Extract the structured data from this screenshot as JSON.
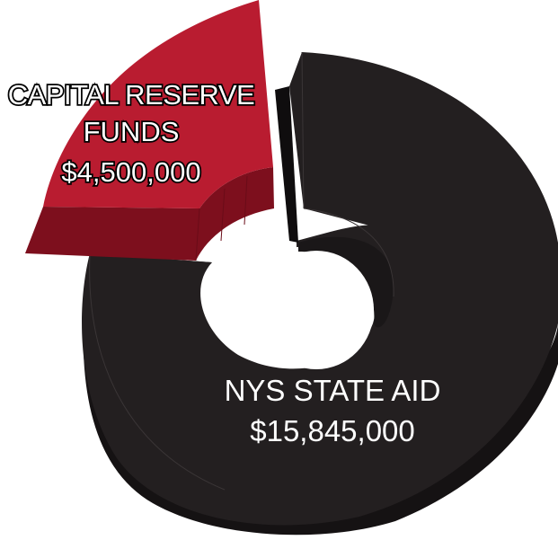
{
  "chart_data": {
    "type": "pie",
    "style": "3d-exploded-donut",
    "title": "",
    "slices": [
      {
        "label_lines": [
          "CAPITAL RESERVE",
          "FUNDS"
        ],
        "value_text": "$4,500,000",
        "value": 4500000,
        "color": "#b91c30",
        "side_color": "#7d0f1d",
        "text_color": "#ffffff",
        "text_outline": "#000000"
      },
      {
        "label_lines": [
          "NYS STATE AID"
        ],
        "value_text": "$15,845,000",
        "value": 15845000,
        "color": "#231f20",
        "side_color": "#151213",
        "text_color": "#ffffff",
        "text_outline": ""
      }
    ]
  }
}
